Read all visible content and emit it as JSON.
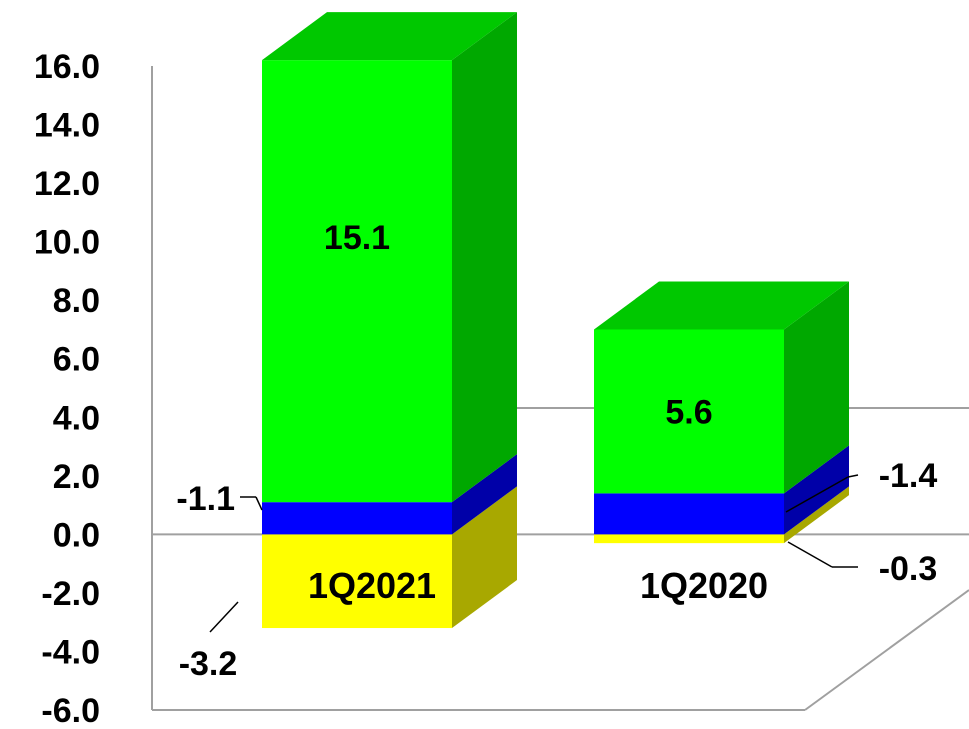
{
  "chart_data": {
    "type": "bar",
    "stacked": true,
    "three_d": true,
    "title": "",
    "xlabel": "",
    "ylabel": "",
    "ylim": [
      -6.0,
      16.0
    ],
    "y_ticks": [
      "16.0",
      "14.0",
      "12.0",
      "10.0",
      "8.0",
      "6.0",
      "4.0",
      "2.0",
      "0.0",
      "-2.0",
      "-4.0",
      "-6.0"
    ],
    "categories": [
      "1Q2021",
      "1Q2020"
    ],
    "series": [
      {
        "values": [
          -3.2,
          -0.3
        ],
        "labels": [
          "-3.2",
          "-0.3"
        ],
        "color": "#ffff00",
        "side_color": "#a8a800",
        "top_color": "#cccc00"
      },
      {
        "values": [
          -1.1,
          -1.4
        ],
        "labels": [
          "-1.1",
          "-1.4"
        ],
        "color": "#0000ff",
        "side_color": "#0000a8",
        "top_color": "#0000cc"
      },
      {
        "values": [
          15.1,
          5.6
        ],
        "labels": [
          "15.1",
          "5.6"
        ],
        "color": "#00ff00",
        "side_color": "#00a800",
        "top_color": "#00c800"
      }
    ],
    "grid": false,
    "legend": "none"
  }
}
